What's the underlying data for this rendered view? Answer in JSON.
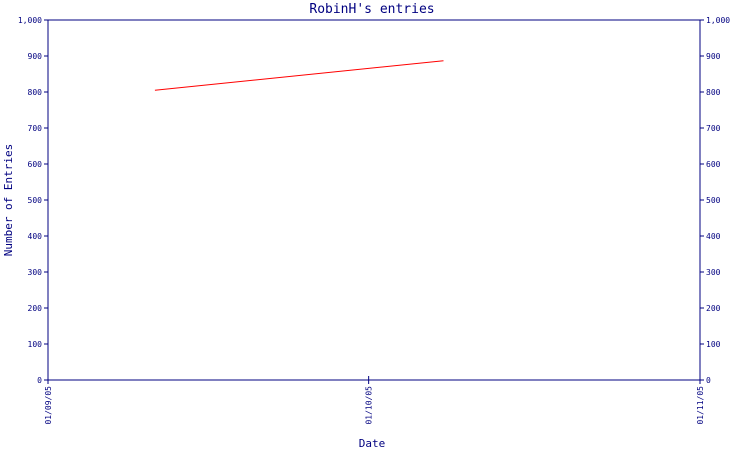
{
  "chart_data": {
    "type": "line",
    "title": "RobinH's entries",
    "xlabel": "Date",
    "ylabel": "Number of Entries",
    "x_tick_labels": [
      "01/09/05",
      "01/10/05",
      "01/11/05"
    ],
    "xlim": [
      "2005-09-01",
      "2005-11-01"
    ],
    "y_ticks": [
      0,
      100,
      200,
      300,
      400,
      500,
      600,
      700,
      800,
      900,
      1000
    ],
    "y_tick_labels": [
      "0",
      "100",
      "200",
      "300",
      "400",
      "500",
      "600",
      "700",
      "800",
      "900",
      "1,000"
    ],
    "ylim": [
      0,
      1000
    ],
    "grid": false,
    "legend": "none",
    "series": [
      {
        "color": "#ff0000",
        "x": [
          "2005-09-11",
          "2005-10-08"
        ],
        "y": [
          805,
          887
        ]
      }
    ],
    "colors": {
      "axis": "#000080",
      "text": "#000080",
      "line": "#ff0000",
      "background": "#ffffff"
    }
  }
}
